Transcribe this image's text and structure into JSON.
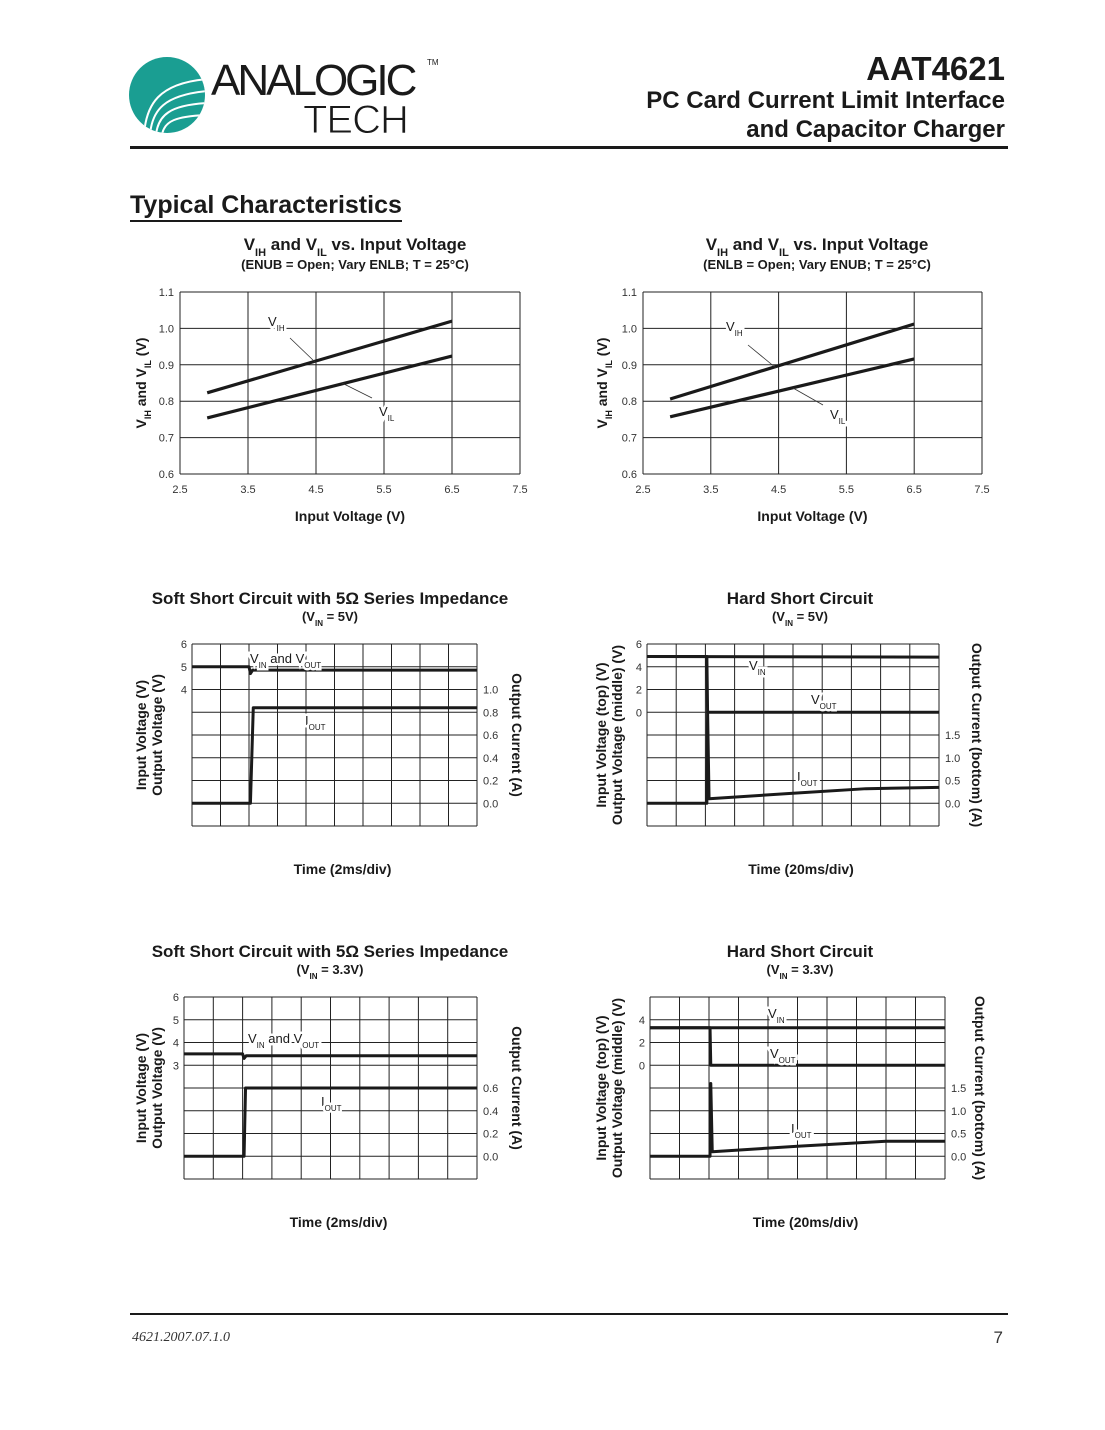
{
  "header": {
    "logo": {
      "line1": "ANALOGIC",
      "line2": "TECH",
      "tm": "TM",
      "color": "#1a9e92"
    },
    "part_number": "AAT4621",
    "title_line1": "PC Card Current Limit Interface",
    "title_line2": "and Capacitor Charger"
  },
  "section_title": "Typical Characteristics",
  "chart_data": [
    {
      "type": "line",
      "title": [
        {
          "t": "V"
        },
        {
          "s": "IH"
        },
        {
          "t": " and V"
        },
        {
          "s": "IL"
        },
        {
          "t": " vs. Input Voltage"
        }
      ],
      "subtitle": [
        {
          "t": "(ENUB = Open; Vary ENLB; T = 25°C)"
        }
      ],
      "xlabel": [
        {
          "t": "Input Voltage (V)"
        }
      ],
      "ylabel": [
        {
          "t": "V"
        },
        {
          "s": "IH"
        },
        {
          "t": " and V"
        },
        {
          "s": "IL"
        },
        {
          "t": " (V)"
        }
      ],
      "xlim": [
        2.5,
        7.5
      ],
      "ylim": [
        0.6,
        1.1
      ],
      "grid": true,
      "xticks": [
        "2.5",
        "3.5",
        "4.5",
        "5.5",
        "6.5",
        "7.5"
      ],
      "yticks": [
        "0.6",
        "0.7",
        "0.8",
        "0.9",
        "1.0",
        "1.1"
      ],
      "series": [
        {
          "name": [
            {
              "t": "V"
            },
            {
              "s": "IH"
            }
          ],
          "x": [
            2.9,
            6.5
          ],
          "y": [
            0.823,
            1.02
          ]
        },
        {
          "name": [
            {
              "t": "V"
            },
            {
              "s": "IL"
            }
          ],
          "x": [
            2.9,
            6.5
          ],
          "y": [
            0.754,
            0.924
          ]
        }
      ]
    },
    {
      "type": "line",
      "title": [
        {
          "t": "V"
        },
        {
          "s": "IH"
        },
        {
          "t": " and V"
        },
        {
          "s": "IL"
        },
        {
          "t": " vs. Input Voltage"
        }
      ],
      "subtitle": [
        {
          "t": "(ENLB = Open; Vary ENUB; T = 25°C)"
        }
      ],
      "xlabel": [
        {
          "t": "Input Voltage (V)"
        }
      ],
      "ylabel": [
        {
          "t": "V"
        },
        {
          "s": "IH"
        },
        {
          "t": " and V"
        },
        {
          "s": "IL"
        },
        {
          "t": " (V)"
        }
      ],
      "xlim": [
        2.5,
        7.5
      ],
      "ylim": [
        0.6,
        1.1
      ],
      "grid": true,
      "xticks": [
        "2.5",
        "3.5",
        "4.5",
        "5.5",
        "6.5",
        "7.5"
      ],
      "yticks": [
        "0.6",
        "0.7",
        "0.8",
        "0.9",
        "1.0",
        "1.1"
      ],
      "series": [
        {
          "name": [
            {
              "t": "V"
            },
            {
              "s": "IH"
            }
          ],
          "x": [
            2.9,
            6.5
          ],
          "y": [
            0.806,
            1.012
          ]
        },
        {
          "name": [
            {
              "t": "V"
            },
            {
              "s": "IL"
            }
          ],
          "x": [
            2.9,
            6.5
          ],
          "y": [
            0.757,
            0.916
          ]
        }
      ]
    },
    {
      "type": "line",
      "title": [
        {
          "t": "Soft Short Circuit with 5Ω Series Impedance"
        }
      ],
      "subtitle": [
        {
          "t": "(V"
        },
        {
          "s": "IN"
        },
        {
          "t": " = 5V)"
        }
      ],
      "xlabel": [
        {
          "t": "Time (2ms/div)"
        }
      ],
      "ylabel_left": [
        [
          {
            "t": "Input Voltage (V)"
          }
        ],
        [
          {
            "t": "Output Voltage (V)"
          }
        ]
      ],
      "ylabel_right": [
        {
          "t": "Output Current (A)"
        }
      ],
      "xlim": [
        0,
        20
      ],
      "ylim_left": [
        -2,
        6
      ],
      "ylim_right": [
        -0.2,
        1.4
      ],
      "grid": true,
      "yticks_left": [
        "4",
        "5",
        "6"
      ],
      "yticks_right": [
        "0.0",
        "0.2",
        "0.4",
        "0.6",
        "0.8",
        "1.0"
      ],
      "series": [
        {
          "name": [
            {
              "t": "V"
            },
            {
              "s": "IN"
            },
            {
              "t": " and V"
            },
            {
              "s": "OUT"
            }
          ],
          "axis": "left",
          "x": [
            0,
            4.0,
            4.1,
            4.25,
            20
          ],
          "y": [
            5.0,
            5.0,
            4.7,
            4.85,
            4.85
          ]
        },
        {
          "name": [
            {
              "t": "I"
            },
            {
              "s": "OUT"
            }
          ],
          "axis": "right",
          "x": [
            0,
            4.1,
            4.3,
            20
          ],
          "y": [
            0,
            0,
            0.84,
            0.84
          ]
        }
      ]
    },
    {
      "type": "line",
      "title": [
        {
          "t": "Hard Short Circuit"
        }
      ],
      "subtitle": [
        {
          "t": "(V"
        },
        {
          "s": "IN"
        },
        {
          "t": " = 5V)"
        }
      ],
      "xlabel": [
        {
          "t": "Time (20ms/div)"
        }
      ],
      "ylabel_left": [
        [
          {
            "t": "Input Voltage (top) (V)"
          }
        ],
        [
          {
            "t": "Output Voltage (middle) (V)"
          }
        ]
      ],
      "ylabel_right": [
        {
          "t": "Output Current (bottom) (A)"
        }
      ],
      "xlim": [
        0,
        200
      ],
      "ylim_left": [
        -10,
        6
      ],
      "ylim_right": [
        -0.5,
        3.5
      ],
      "grid": true,
      "yticks_left": [
        "0",
        "2",
        "4",
        "6"
      ],
      "yticks_right": [
        "0.0",
        "0.5",
        "1.0",
        "1.5"
      ],
      "series": [
        {
          "name": [
            {
              "t": "V"
            },
            {
              "s": "IN"
            }
          ],
          "axis": "left",
          "x": [
            0,
            200
          ],
          "y": [
            4.9,
            4.85
          ]
        },
        {
          "name": [
            {
              "t": "V"
            },
            {
              "s": "OUT"
            }
          ],
          "axis": "left",
          "x": [
            0,
            41,
            41.5,
            200
          ],
          "y": [
            4.9,
            4.9,
            0,
            0
          ]
        },
        {
          "name": [
            {
              "t": "I"
            },
            {
              "s": "OUT"
            }
          ],
          "axis": "right",
          "x": [
            0,
            41,
            41.5,
            42.5,
            100,
            150,
            200
          ],
          "y": [
            0,
            0,
            2.0,
            0.1,
            0.22,
            0.32,
            0.35
          ]
        }
      ]
    },
    {
      "type": "line",
      "title": [
        {
          "t": "Soft Short Circuit with 5Ω Series Impedance"
        }
      ],
      "subtitle": [
        {
          "t": "(V"
        },
        {
          "s": "IN"
        },
        {
          "t": " = 3.3V)"
        }
      ],
      "xlabel": [
        {
          "t": "Time (2ms/div)"
        }
      ],
      "ylabel_left": [
        [
          {
            "t": "Input Voltage (V)"
          }
        ],
        [
          {
            "t": "Output Voltage (V)"
          }
        ]
      ],
      "ylabel_right": [
        {
          "t": "Output Current (A)"
        }
      ],
      "xlim": [
        0,
        20
      ],
      "ylim_left": [
        -2,
        6
      ],
      "ylim_right": [
        -0.2,
        1.4
      ],
      "grid": true,
      "yticks_left": [
        "3",
        "4",
        "5",
        "6"
      ],
      "yticks_right": [
        "0.0",
        "0.2",
        "0.4",
        "0.6"
      ],
      "series": [
        {
          "name": [
            {
              "t": "V"
            },
            {
              "s": "IN"
            },
            {
              "t": " and V"
            },
            {
              "s": "OUT"
            }
          ],
          "axis": "left",
          "x": [
            0,
            4.0,
            4.1,
            4.25,
            20
          ],
          "y": [
            3.5,
            3.5,
            3.3,
            3.42,
            3.42
          ]
        },
        {
          "name": [
            {
              "t": "I"
            },
            {
              "s": "OUT"
            }
          ],
          "axis": "right",
          "x": [
            0,
            4.1,
            4.2,
            20
          ],
          "y": [
            0,
            0,
            0.6,
            0.6
          ]
        }
      ]
    },
    {
      "type": "line",
      "title": [
        {
          "t": "Hard Short Circuit"
        }
      ],
      "subtitle": [
        {
          "t": "(V"
        },
        {
          "s": "IN"
        },
        {
          "t": " = 3.3V)"
        }
      ],
      "xlabel": [
        {
          "t": "Time (20ms/div)"
        }
      ],
      "ylabel_left": [
        [
          {
            "t": "Input Voltage (top) (V)"
          }
        ],
        [
          {
            "t": "Output Voltage (middle) (V)"
          }
        ]
      ],
      "ylabel_right": [
        {
          "t": "Output Current (bottom) (A)"
        }
      ],
      "xlim": [
        0,
        200
      ],
      "ylim_left": [
        -10,
        6
      ],
      "ylim_right": [
        -0.5,
        3.5
      ],
      "grid": true,
      "yticks_left": [
        "0",
        "2",
        "4"
      ],
      "yticks_right": [
        "0.0",
        "0.5",
        "1.0",
        "1.5"
      ],
      "series": [
        {
          "name": [
            {
              "t": "V"
            },
            {
              "s": "IN"
            }
          ],
          "axis": "left",
          "x": [
            0,
            200
          ],
          "y": [
            3.3,
            3.3
          ]
        },
        {
          "name": [
            {
              "t": "V"
            },
            {
              "s": "OUT"
            }
          ],
          "axis": "left",
          "x": [
            0,
            40.7,
            41.2,
            200
          ],
          "y": [
            3.3,
            3.3,
            0,
            0
          ]
        },
        {
          "name": [
            {
              "t": "I"
            },
            {
              "s": "OUT"
            }
          ],
          "axis": "right",
          "x": [
            0,
            40.7,
            41.2,
            42.2,
            100,
            160,
            200
          ],
          "y": [
            0,
            0,
            1.6,
            0.1,
            0.22,
            0.33,
            0.33
          ]
        }
      ]
    }
  ],
  "footer": {
    "doc_id": "4621.2007.07.1.0",
    "page_number": "7"
  }
}
